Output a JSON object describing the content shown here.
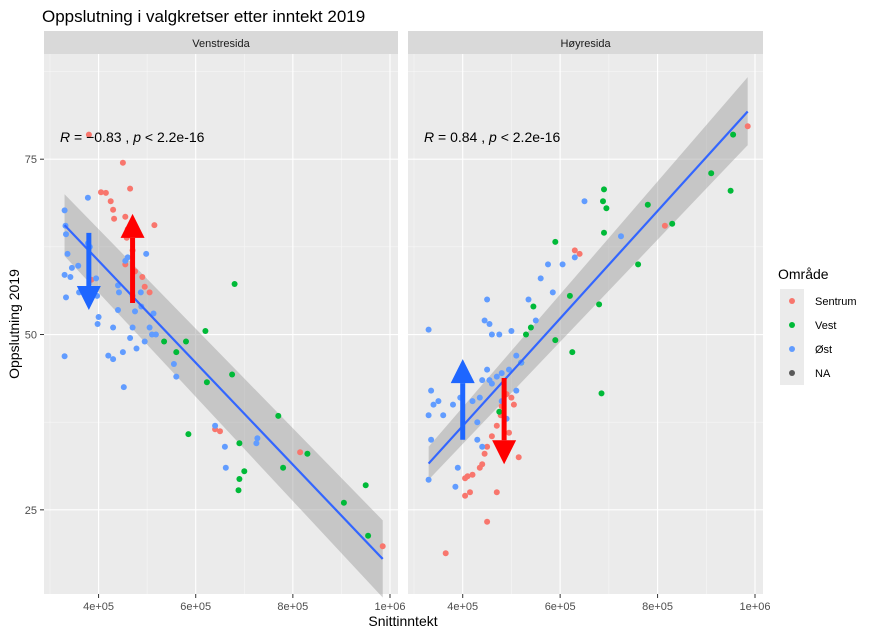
{
  "chart_data": {
    "type": "scatter",
    "title": "Oppslutning i valgkretser etter inntekt 2019",
    "xlabel": "Snittinntekt",
    "ylabel": "Oppslutning 2019",
    "xlim": [
      300000,
      1000000
    ],
    "ylim": [
      13,
      90
    ],
    "x_ticks": [
      400000,
      600000,
      800000,
      1000000
    ],
    "x_tick_labels": [
      "4e+05",
      "6e+05",
      "8e+05",
      "1e+06"
    ],
    "y_ticks": [
      25,
      50,
      75
    ],
    "y_tick_labels": [
      "25",
      "50",
      "75"
    ],
    "grid": true,
    "legend": {
      "title": "Område",
      "position": "right",
      "entries": [
        {
          "label": "Sentrum",
          "color": "#F8766D"
        },
        {
          "label": "Vest",
          "color": "#00BA38"
        },
        {
          "label": "Øst",
          "color": "#619CFF"
        },
        {
          "label": "NA",
          "color": "#595959"
        }
      ]
    },
    "colors": {
      "Sentrum": "#F8766D",
      "Vest": "#00BA38",
      "Øst": "#619CFF",
      "NA": "#595959"
    },
    "regression_color": "#3366FF",
    "ribbon_color": "#999999",
    "panels": [
      {
        "strip": "Venstresida",
        "stat_label": {
          "R": "−0.83",
          "p": "< 2.2e-16"
        },
        "regression": {
          "x": [
            330000,
            985000
          ],
          "y": [
            65.6,
            18.0
          ],
          "lower": [
            61.2,
            12.5
          ],
          "upper": [
            70.0,
            23.5
          ]
        },
        "arrows": [
          {
            "x": 380000,
            "from": 64.5,
            "to": 53.5,
            "color": "#1E66FF"
          },
          {
            "x": 470000,
            "from": 54.5,
            "to": 67.2,
            "color": "#FF0000"
          }
        ],
        "points": {
          "Sentrum": [
            [
              380000,
              78.5
            ],
            [
              450000,
              74.5
            ],
            [
              465000,
              70.8
            ],
            [
              405000,
              70.3
            ],
            [
              415000,
              70.2
            ],
            [
              425000,
              69.0
            ],
            [
              430000,
              67.8
            ],
            [
              432000,
              66.5
            ],
            [
              455000,
              66.8
            ],
            [
              460000,
              65.0
            ],
            [
              458000,
              63.8
            ],
            [
              515000,
              65.6
            ],
            [
              455000,
              60.0
            ],
            [
              470000,
              62.0
            ],
            [
              475000,
              59.0
            ],
            [
              385000,
              57.8
            ],
            [
              490000,
              58.2
            ],
            [
              495000,
              56.8
            ],
            [
              505000,
              56.0
            ],
            [
              640000,
              36.5
            ],
            [
              650000,
              36.2
            ],
            [
              815000,
              33.2
            ],
            [
              985000,
              19.8
            ]
          ],
          "Vest": [
            [
              580000,
              49.0
            ],
            [
              620000,
              50.5
            ],
            [
              535000,
              49.0
            ],
            [
              560000,
              47.5
            ],
            [
              675000,
              44.3
            ],
            [
              680000,
              57.2
            ],
            [
              585000,
              35.8
            ],
            [
              623000,
              43.2
            ],
            [
              690000,
              34.5
            ],
            [
              770000,
              38.4
            ],
            [
              830000,
              33.0
            ],
            [
              690000,
              29.4
            ],
            [
              688000,
              27.8
            ],
            [
              700000,
              30.5
            ],
            [
              780000,
              31.0
            ],
            [
              905000,
              26.0
            ],
            [
              950000,
              28.5
            ],
            [
              955000,
              21.3
            ]
          ],
          "Øst": [
            [
              330000,
              67.7
            ],
            [
              332000,
              65.5
            ],
            [
              333000,
              64.3
            ],
            [
              336000,
              61.5
            ],
            [
              330000,
              58.5
            ],
            [
              342000,
              58.2
            ],
            [
              333000,
              55.3
            ],
            [
              345000,
              59.5
            ],
            [
              358000,
              59.8
            ],
            [
              360000,
              56.0
            ],
            [
              395000,
              58.0
            ],
            [
              397000,
              55.5
            ],
            [
              400000,
              52.5
            ],
            [
              398000,
              51.5
            ],
            [
              378000,
              69.5
            ],
            [
              378000,
              63.0
            ],
            [
              382000,
              62.5
            ],
            [
              440000,
              57.0
            ],
            [
              440000,
              53.5
            ],
            [
              442000,
              56.0
            ],
            [
              455000,
              60.5
            ],
            [
              460000,
              61.0
            ],
            [
              470000,
              55.5
            ],
            [
              475000,
              53.3
            ],
            [
              488000,
              54.0
            ],
            [
              487000,
              56.0
            ],
            [
              498000,
              61.5
            ],
            [
              513000,
              53.0
            ],
            [
              518000,
              50.0
            ],
            [
              430000,
              46.5
            ],
            [
              450000,
              47.5
            ],
            [
              452000,
              42.5
            ],
            [
              478000,
              48.0
            ],
            [
              495000,
              49.0
            ],
            [
              470000,
              51.0
            ],
            [
              430000,
              51.0
            ],
            [
              420000,
              47.0
            ],
            [
              330000,
              46.9
            ],
            [
              555000,
              45.8
            ],
            [
              560000,
              44.0
            ],
            [
              640000,
              37.0
            ],
            [
              660000,
              34.0
            ],
            [
              662000,
              31.0
            ],
            [
              725000,
              34.5
            ],
            [
              727000,
              35.2
            ],
            [
              510000,
              50.0
            ],
            [
              505000,
              51.0
            ],
            [
              465000,
              49.5
            ]
          ]
        }
      },
      {
        "strip": "Høyresida",
        "stat_label": {
          "R": "0.84",
          "p": "< 2.2e-16"
        },
        "regression": {
          "x": [
            330000,
            985000
          ],
          "y": [
            31.6,
            81.8
          ],
          "lower": [
            29.3,
            77.0
          ],
          "upper": [
            34.0,
            86.7
          ]
        },
        "arrows": [
          {
            "x": 400000,
            "from": 35.0,
            "to": 46.5,
            "color": "#1E66FF"
          },
          {
            "x": 485000,
            "from": 43.8,
            "to": 31.5,
            "color": "#FF0000"
          }
        ],
        "points": {
          "Sentrum": [
            [
              985000,
              79.7
            ],
            [
              630000,
              62.0
            ],
            [
              640000,
              61.5
            ],
            [
              815000,
              65.5
            ],
            [
              490000,
              41.5
            ],
            [
              500000,
              41.0
            ],
            [
              505000,
              40.0
            ],
            [
              480000,
              39.8
            ],
            [
              478000,
              38.5
            ],
            [
              470000,
              37.0
            ],
            [
              495000,
              36.0
            ],
            [
              460000,
              35.5
            ],
            [
              450000,
              34.0
            ],
            [
              445000,
              33.0
            ],
            [
              440000,
              31.5
            ],
            [
              435000,
              31.0
            ],
            [
              420000,
              30.0
            ],
            [
              410000,
              29.8
            ],
            [
              405000,
              29.5
            ],
            [
              415000,
              27.5
            ],
            [
              405000,
              27.0
            ],
            [
              470000,
              27.5
            ],
            [
              450000,
              23.3
            ],
            [
              365000,
              18.8
            ],
            [
              515000,
              32.5
            ]
          ],
          "Vest": [
            [
              955000,
              78.5
            ],
            [
              950000,
              70.5
            ],
            [
              910000,
              73.0
            ],
            [
              830000,
              65.8
            ],
            [
              780000,
              68.5
            ],
            [
              760000,
              60.0
            ],
            [
              695000,
              68.0
            ],
            [
              690000,
              70.7
            ],
            [
              688000,
              69.0
            ],
            [
              690000,
              64.5
            ],
            [
              680000,
              54.3
            ],
            [
              685000,
              41.6
            ],
            [
              620000,
              55.5
            ],
            [
              625000,
              47.5
            ],
            [
              590000,
              63.2
            ],
            [
              590000,
              49.2
            ],
            [
              545000,
              54.0
            ],
            [
              540000,
              51.0
            ],
            [
              530000,
              50.0
            ],
            [
              475000,
              39.0
            ],
            [
              520000,
              46.0
            ]
          ],
          "Øst": [
            [
              330000,
              50.7
            ],
            [
              335000,
              42.0
            ],
            [
              340000,
              40.0
            ],
            [
              350000,
              40.5
            ],
            [
              360000,
              38.5
            ],
            [
              380000,
              40.0
            ],
            [
              330000,
              38.5
            ],
            [
              335000,
              35.0
            ],
            [
              330000,
              29.3
            ],
            [
              390000,
              31.0
            ],
            [
              385000,
              28.3
            ],
            [
              395000,
              41.0
            ],
            [
              420000,
              40.5
            ],
            [
              430000,
              37.5
            ],
            [
              435000,
              41.0
            ],
            [
              440000,
              43.5
            ],
            [
              450000,
              45.0
            ],
            [
              455000,
              43.5
            ],
            [
              460000,
              43.0
            ],
            [
              470000,
              44.0
            ],
            [
              480000,
              44.5
            ],
            [
              495000,
              45.0
            ],
            [
              445000,
              52.0
            ],
            [
              450000,
              55.0
            ],
            [
              455000,
              51.5
            ],
            [
              460000,
              50.0
            ],
            [
              475000,
              50.0
            ],
            [
              500000,
              50.5
            ],
            [
              510000,
              47.0
            ],
            [
              520000,
              46.0
            ],
            [
              535000,
              55.0
            ],
            [
              550000,
              52.0
            ],
            [
              560000,
              58.0
            ],
            [
              575000,
              60.0
            ],
            [
              585000,
              56.0
            ],
            [
              605000,
              60.0
            ],
            [
              630000,
              61.0
            ],
            [
              650000,
              69.0
            ],
            [
              725000,
              64.0
            ],
            [
              430000,
              35.0
            ],
            [
              440000,
              34.0
            ],
            [
              480000,
              40.5
            ],
            [
              490000,
              38.0
            ],
            [
              510000,
              42.0
            ]
          ]
        }
      }
    ]
  }
}
